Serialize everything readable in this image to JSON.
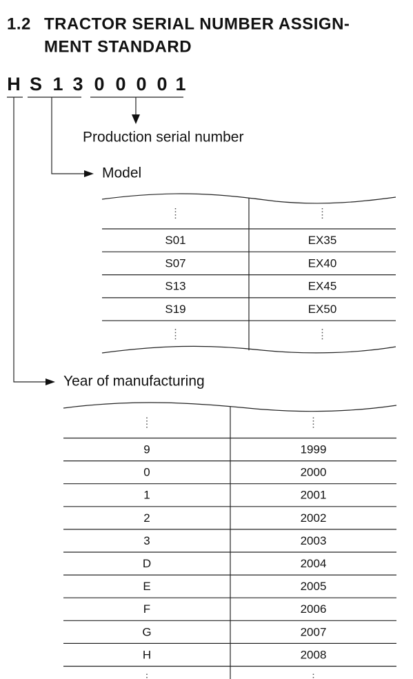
{
  "heading": {
    "number": "1.2",
    "title_lines": [
      "TRACTOR SERIAL NUMBER ASSIGN-",
      "MENT STANDARD"
    ]
  },
  "serial": {
    "characters": [
      "H",
      "S",
      "1",
      "3",
      "0",
      "0",
      "0",
      "0",
      "1"
    ]
  },
  "labels": {
    "production": "Production serial number",
    "model": "Model",
    "year": "Year of manufacturing"
  },
  "model_table": {
    "rows": [
      [
        "S01",
        "EX35"
      ],
      [
        "S07",
        "EX40"
      ],
      [
        "S13",
        "EX45"
      ],
      [
        "S19",
        "EX50"
      ]
    ]
  },
  "year_table": {
    "rows": [
      [
        "9",
        "1999"
      ],
      [
        "0",
        "2000"
      ],
      [
        "1",
        "2001"
      ],
      [
        "2",
        "2002"
      ],
      [
        "3",
        "2003"
      ],
      [
        "D",
        "2004"
      ],
      [
        "E",
        "2005"
      ],
      [
        "F",
        "2006"
      ],
      [
        "G",
        "2007"
      ],
      [
        "H",
        "2008"
      ]
    ]
  }
}
